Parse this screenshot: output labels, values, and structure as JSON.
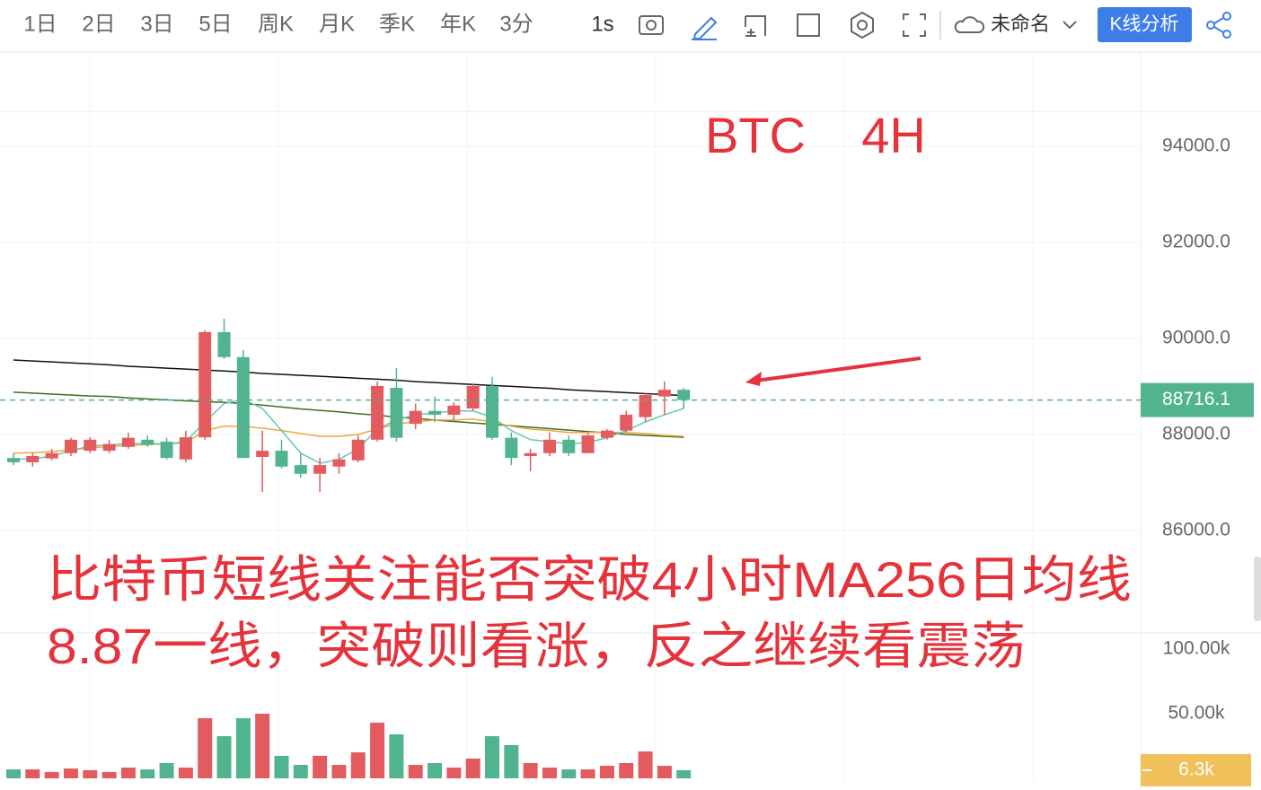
{
  "toolbar": {
    "periods": [
      "1日",
      "2日",
      "3日",
      "5日",
      "周K",
      "月K",
      "季K",
      "年K",
      "3分"
    ],
    "interval": "1s",
    "layout_name": "未命名",
    "analysis_button": "K线分析"
  },
  "chart_data": [
    {
      "type": "candlestick",
      "annotations": [
        "BTC    4H",
        "比特币短线关注能否突破4小时MA256日均线",
        "8.87一线，突破则看涨，反之继续看震荡"
      ],
      "open": [
        87510,
        87420,
        87500,
        87610,
        87660,
        87660,
        87740,
        87890,
        87850,
        87480,
        87940,
        90130,
        89610,
        87530,
        87660,
        87360,
        87180,
        87330,
        87460,
        87890,
        88970,
        88220,
        88490,
        88410,
        88540,
        89010,
        87930,
        87550,
        87610,
        87890,
        87610,
        87930,
        88080,
        88360,
        88790,
        88930
      ],
      "high": [
        87610,
        87610,
        87700,
        87930,
        87940,
        87890,
        88040,
        87980,
        87930,
        88080,
        90170,
        90410,
        89760,
        88080,
        87890,
        87610,
        87510,
        87610,
        87980,
        89100,
        89380,
        88640,
        88790,
        88670,
        89050,
        89200,
        88040,
        87700,
        88040,
        87980,
        88040,
        88110,
        88490,
        88860,
        89100,
        88970
      ],
      "low": [
        87360,
        87330,
        87460,
        87550,
        87610,
        87610,
        87700,
        87740,
        87480,
        87420,
        87890,
        89570,
        87510,
        86800,
        87290,
        87100,
        86800,
        87180,
        87420,
        87850,
        87850,
        88110,
        88260,
        88300,
        88490,
        87890,
        87360,
        87230,
        87550,
        87550,
        87610,
        87890,
        88040,
        88260,
        88410,
        88540
      ],
      "close": [
        87420,
        87550,
        87610,
        87890,
        87890,
        87800,
        87930,
        87780,
        87510,
        87940,
        90130,
        89610,
        87510,
        87660,
        87330,
        87180,
        87360,
        87480,
        87890,
        89010,
        87930,
        88490,
        88410,
        88600,
        89010,
        87930,
        87510,
        87610,
        87890,
        87610,
        87980,
        88080,
        88410,
        88820,
        88930,
        88716.1
      ],
      "up_color": "#e35b5f",
      "down_color": "#52b38f",
      "series": [
        {
          "color": "#111111",
          "values": [
            89550,
            89530,
            89510,
            89490,
            89470,
            89450,
            89420,
            89400,
            89380,
            89360,
            89340,
            89320,
            89300,
            89270,
            89250,
            89230,
            89210,
            89190,
            89170,
            89150,
            89130,
            89100,
            89080,
            89060,
            89040,
            89020,
            89000,
            88980,
            88960,
            88930,
            88910,
            88890,
            88870,
            88850,
            88830,
            88810
          ]
        },
        {
          "color": "#3d6e1e",
          "values": [
            88880,
            88860,
            88840,
            88820,
            88800,
            88790,
            88760,
            88740,
            88720,
            88700,
            88680,
            88670,
            88640,
            88610,
            88570,
            88530,
            88500,
            88470,
            88430,
            88400,
            88360,
            88330,
            88300,
            88270,
            88240,
            88210,
            88180,
            88150,
            88120,
            88090,
            88060,
            88030,
            88000,
            87980,
            87960,
            87940
          ]
        },
        {
          "color": "#f2a63a",
          "values": [
            87610,
            87620,
            87640,
            87680,
            87720,
            87750,
            87770,
            87790,
            87800,
            87830,
            88080,
            88170,
            88170,
            88130,
            88080,
            88020,
            87960,
            87960,
            88000,
            88110,
            88220,
            88260,
            88300,
            88300,
            88320,
            88260,
            88170,
            88110,
            88080,
            88040,
            88040,
            88040,
            88040,
            88020,
            87980,
            87960
          ]
        },
        {
          "color": "#63c7b8",
          "values": [
            87480,
            87490,
            87550,
            87660,
            87760,
            87780,
            87810,
            87810,
            87800,
            87850,
            88260,
            88640,
            88730,
            88540,
            88080,
            87610,
            87400,
            87480,
            87700,
            88110,
            88300,
            88410,
            88450,
            88490,
            88490,
            88360,
            88080,
            87890,
            87850,
            87800,
            87830,
            87930,
            88080,
            88260,
            88410,
            88540
          ]
        }
      ],
      "last_price": 88716.1,
      "last_price_color": "#52b38f",
      "ylim": [
        83960,
        95925
      ],
      "yticks": [
        {
          "value": 86000,
          "label": "86000.0"
        },
        {
          "value": 88000,
          "label": "88000.0"
        },
        {
          "value": 90000,
          "label": "90000.0"
        },
        {
          "value": 92000,
          "label": "92000.0"
        },
        {
          "value": 94000,
          "label": "94000.0"
        }
      ],
      "grid": true
    },
    {
      "type": "bar",
      "values": [
        6900,
        6900,
        4900,
        7600,
        6300,
        4900,
        8300,
        6900,
        11800,
        8300,
        46500,
        32600,
        46500,
        50000,
        17400,
        10400,
        17400,
        10400,
        20100,
        43100,
        34000,
        10400,
        11800,
        8300,
        15300,
        32600,
        25700,
        11800,
        8300,
        6900,
        6900,
        9700,
        11800,
        20800,
        9700,
        6300
      ],
      "last_value": {
        "value": 6300,
        "label": "6.3k"
      },
      "last_value_color": "#f0c05a",
      "ylim": [
        0,
        112500
      ],
      "yticks": [
        {
          "value": 50000,
          "label": "50.00k"
        },
        {
          "value": 100000,
          "label": "100.00k"
        }
      ]
    }
  ]
}
